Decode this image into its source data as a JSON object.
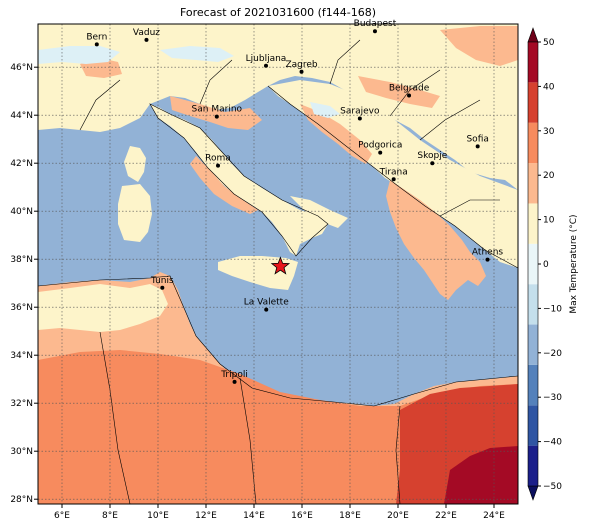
{
  "title": "Forecast of 2021031600 (f144-168)",
  "colors": {
    "sea": "#92b2d6",
    "band_0_10": "#fdf4ca",
    "band_10_20": "#fcb98f",
    "band_20_30": "#f78b5e",
    "band_30_40": "#d6412f",
    "band_40_50": "#a40a25",
    "cold_m10_0": "#ddf0f6",
    "marker": "#000000",
    "star": "#e8161b"
  },
  "map": {
    "lon_range": [
      5,
      25
    ],
    "lat_range": [
      27.8,
      47.8
    ],
    "lon_ticks": [
      "6°E",
      "8°E",
      "10°E",
      "12°E",
      "14°E",
      "16°E",
      "18°E",
      "20°E",
      "22°E",
      "24°E"
    ],
    "lat_ticks": [
      "28°N",
      "30°N",
      "32°N",
      "34°N",
      "36°N",
      "38°N",
      "40°N",
      "42°N",
      "44°N",
      "46°N"
    ],
    "lon_tick_values": [
      6,
      8,
      10,
      12,
      14,
      16,
      18,
      20,
      22,
      24
    ],
    "lat_tick_values": [
      28,
      30,
      32,
      34,
      36,
      38,
      40,
      42,
      44,
      46
    ],
    "gridlines": true
  },
  "cities": [
    {
      "name": "Bern",
      "lon": 7.45,
      "lat": 46.95
    },
    {
      "name": "Vaduz",
      "lon": 9.52,
      "lat": 47.14
    },
    {
      "name": "Budapest",
      "lon": 19.04,
      "lat": 47.5
    },
    {
      "name": "Ljubljana",
      "lon": 14.5,
      "lat": 46.06
    },
    {
      "name": "Zagreb",
      "lon": 15.98,
      "lat": 45.81
    },
    {
      "name": "Belgrade",
      "lon": 20.46,
      "lat": 44.82
    },
    {
      "name": "Sarajevo",
      "lon": 18.41,
      "lat": 43.86
    },
    {
      "name": "San Marino",
      "lon": 12.45,
      "lat": 43.94
    },
    {
      "name": "Sofia",
      "lon": 23.32,
      "lat": 42.7
    },
    {
      "name": "Podgorica",
      "lon": 19.26,
      "lat": 42.44
    },
    {
      "name": "Skopje",
      "lon": 21.43,
      "lat": 42.0
    },
    {
      "name": "Roma",
      "lon": 12.5,
      "lat": 41.9
    },
    {
      "name": "Tirana",
      "lon": 19.82,
      "lat": 41.33
    },
    {
      "name": "Athens",
      "lon": 23.73,
      "lat": 37.98
    },
    {
      "name": "Tunis",
      "lon": 10.18,
      "lat": 36.81
    },
    {
      "name": "La Valette",
      "lon": 14.51,
      "lat": 35.9
    },
    {
      "name": "Tripoli",
      "lon": 13.19,
      "lat": 32.89
    }
  ],
  "star_marker": {
    "lon": 15.1,
    "lat": 37.7
  },
  "colorbar": {
    "label": "Max Temperature (°C)",
    "ticks": [
      "50",
      "40",
      "30",
      "20",
      "10",
      "0",
      "−10",
      "−20",
      "−30",
      "−40",
      "−50"
    ],
    "tick_values": [
      50,
      40,
      30,
      20,
      10,
      0,
      -10,
      -20,
      -30,
      -40,
      -50
    ],
    "band_colors": [
      "#1b1f8a",
      "#2f55a3",
      "#5481bb",
      "#92b2d6",
      "#c4dfec",
      "#eaf6f8",
      "#fdf4ca",
      "#fcb98f",
      "#f78b5e",
      "#d6412f",
      "#a40a25"
    ],
    "extend": "both"
  }
}
